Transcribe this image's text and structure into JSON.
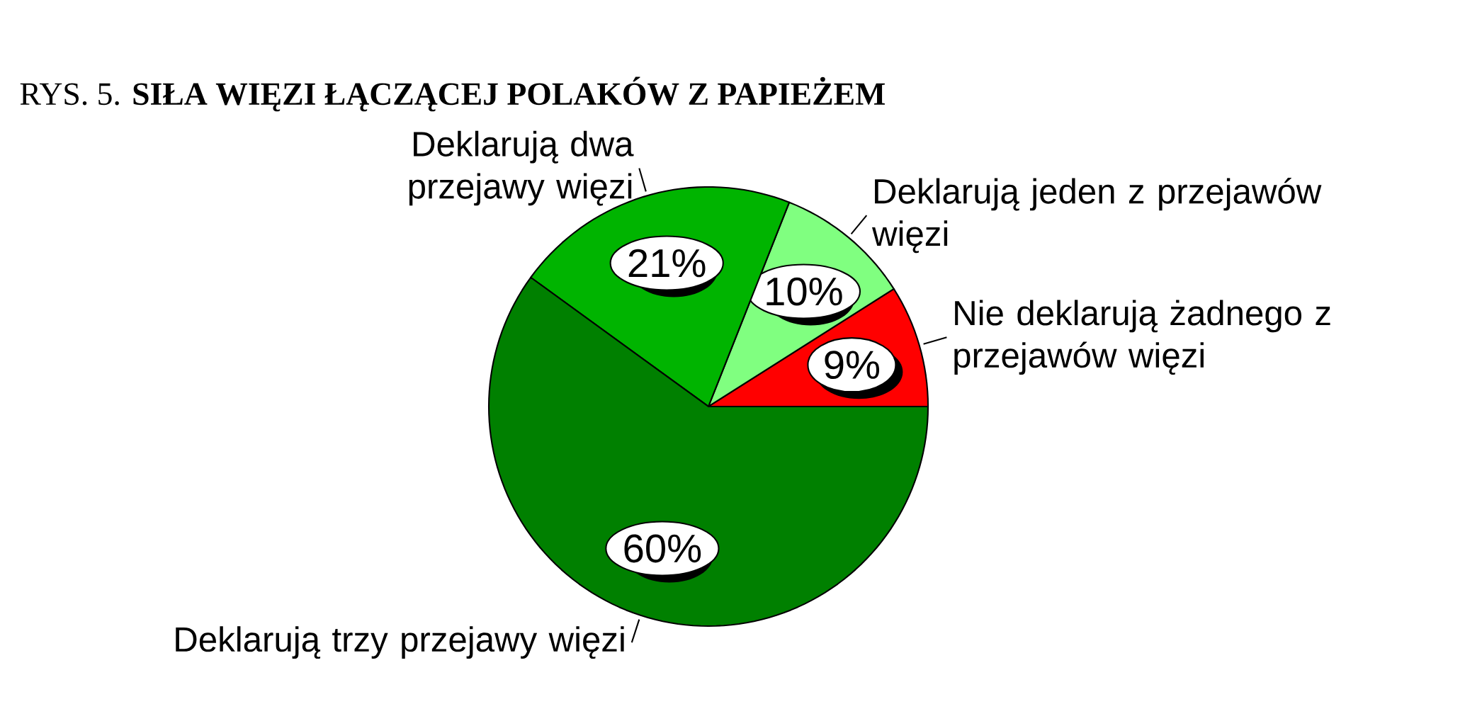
{
  "chart_data": {
    "type": "pie",
    "title": "RYS. 5. **SIŁA WIĘZI ŁĄCZĄCEJ POLAKÓW Z PAPIEŻEM**",
    "categories": [
      "Nie deklarują żadnego z przejawów więzi",
      "Deklarują jeden z przejawów więzi",
      "Deklarują dwa przejawy więzi",
      "Deklarują trzy przejawy więzi"
    ],
    "values": [
      9,
      10,
      21,
      60
    ],
    "colors": [
      "#ff0000",
      "#80ff80",
      "#00b400",
      "#008000"
    ],
    "value_labels": [
      "9%",
      "10%",
      "21%",
      "60%"
    ]
  }
}
